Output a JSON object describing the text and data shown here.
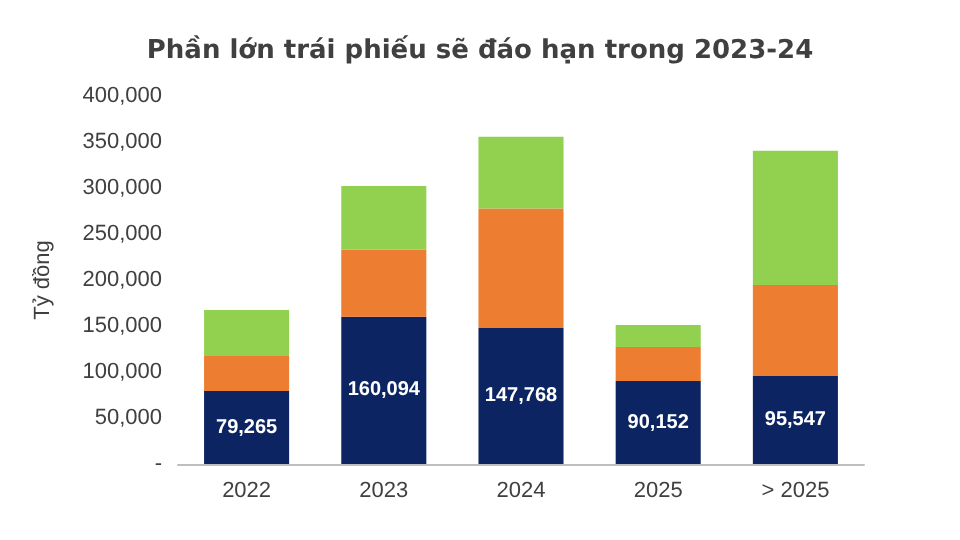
{
  "chart_data": {
    "type": "bar",
    "title": "Phần lớn trái phiếu sẽ đáo hạn trong 2023-24",
    "ylabel": "Tỷ đồng",
    "stacked": true,
    "categories": [
      "2022",
      "2023",
      "2024",
      "2025",
      "> 2025"
    ],
    "series": [
      {
        "color": "#0c2461",
        "values": [
          79265,
          160094,
          147768,
          90152,
          95547
        ],
        "value_labels": [
          "79,265",
          "160,094",
          "147,768",
          "90,152",
          "95,547"
        ]
      },
      {
        "color": "#ed7d31",
        "values": [
          39000,
          73000,
          130000,
          37000,
          99000
        ]
      },
      {
        "color": "#92d050",
        "values": [
          49000,
          69000,
          78000,
          24000,
          146000
        ]
      }
    ],
    "ylim": [
      0,
      400000
    ],
    "yticks": [
      {
        "value": 0,
        "label": "-"
      },
      {
        "value": 50000,
        "label": "50,000"
      },
      {
        "value": 100000,
        "label": "100,000"
      },
      {
        "value": 150000,
        "label": "150,000"
      },
      {
        "value": 200000,
        "label": "200,000"
      },
      {
        "value": 250000,
        "label": "250,000"
      },
      {
        "value": 300000,
        "label": "300,000"
      },
      {
        "value": 350000,
        "label": "350,000"
      },
      {
        "value": 400000,
        "label": "400,000"
      }
    ],
    "grid": false
  }
}
